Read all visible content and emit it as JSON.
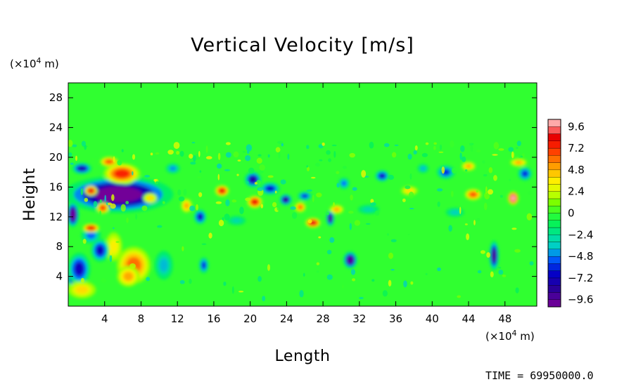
{
  "chart_data": {
    "type": "heatmap",
    "title": "Vertical Velocity [m/s]",
    "xlabel": "Length",
    "ylabel": "Height",
    "x_unit_prefix": "(×10",
    "x_unit_exp": "4",
    "x_unit_suffix": " m)",
    "y_unit_prefix": "(×10",
    "y_unit_exp": "4",
    "y_unit_suffix": " m)",
    "xlim": [
      0,
      51.5
    ],
    "ylim": [
      0,
      30
    ],
    "x_ticks": [
      4,
      8,
      12,
      16,
      20,
      24,
      28,
      32,
      36,
      40,
      44,
      48
    ],
    "x_tick_labels": [
      "4",
      "8",
      "12",
      "16",
      "20",
      "24",
      "28",
      "32",
      "36",
      "40",
      "44",
      "48"
    ],
    "y_ticks": [
      4,
      8,
      12,
      16,
      20,
      24,
      28
    ],
    "y_tick_labels": [
      "4",
      "8",
      "12",
      "16",
      "20",
      "24",
      "28"
    ],
    "colorbar": {
      "min": -10.4,
      "max": 10.4,
      "levels": [
        9.6,
        7.2,
        4.8,
        2.4,
        0,
        -2.4,
        -4.8,
        -7.2,
        -9.6
      ],
      "level_labels": [
        "9.6",
        "7.2",
        "4.8",
        "2.4",
        "0",
        "−2.4",
        "−4.8",
        "−7.2",
        "−9.6"
      ],
      "stops": [
        [
          -10.4,
          "#7a0098"
        ],
        [
          -8.4,
          "#2a009a"
        ],
        [
          -6.6,
          "#0000cc"
        ],
        [
          -5.0,
          "#0066ff"
        ],
        [
          -3.8,
          "#00cccc"
        ],
        [
          -2.6,
          "#00e0a0"
        ],
        [
          -1.4,
          "#00f060"
        ],
        [
          0.0,
          "#30ff30"
        ],
        [
          1.2,
          "#7cff00"
        ],
        [
          2.4,
          "#d6ff00"
        ],
        [
          3.6,
          "#ffee00"
        ],
        [
          4.8,
          "#ffb400"
        ],
        [
          6.0,
          "#ff7000"
        ],
        [
          7.2,
          "#ff2a00"
        ],
        [
          8.4,
          "#e80000"
        ],
        [
          9.4,
          "#ff7070"
        ],
        [
          10.4,
          "#ffd0d0"
        ]
      ]
    },
    "blobs": [
      {
        "x": 5.5,
        "y": 15.0,
        "w": 7.8,
        "h": 3.2,
        "value": -10.2
      },
      {
        "x": 6.3,
        "y": 17.2,
        "w": 1.4,
        "h": 1.1,
        "value": 10.2
      },
      {
        "x": 5.9,
        "y": 17.8,
        "w": 2.6,
        "h": 1.8,
        "value": 7.5
      },
      {
        "x": 7.2,
        "y": 5.5,
        "w": 2.4,
        "h": 3.2,
        "value": 6.0
      },
      {
        "x": 6.6,
        "y": 4.0,
        "w": 1.6,
        "h": 1.8,
        "value": 5.0
      },
      {
        "x": 5.0,
        "y": 8.0,
        "w": 1.2,
        "h": 2.5,
        "value": 3.5
      },
      {
        "x": 0.6,
        "y": 4.0,
        "w": 1.0,
        "h": 1.8,
        "value": -10.0
      },
      {
        "x": 1.2,
        "y": 5.0,
        "w": 1.6,
        "h": 2.8,
        "value": -7.0
      },
      {
        "x": 3.5,
        "y": 7.5,
        "w": 1.3,
        "h": 2.0,
        "value": -7.0
      },
      {
        "x": 2.5,
        "y": 9.5,
        "w": 1.4,
        "h": 1.4,
        "value": -5.0
      },
      {
        "x": 0.5,
        "y": 12.3,
        "w": 0.9,
        "h": 2.2,
        "value": -10.0
      },
      {
        "x": 1.5,
        "y": 18.5,
        "w": 1.4,
        "h": 1.0,
        "value": -7.5
      },
      {
        "x": 2.5,
        "y": 15.5,
        "w": 0.9,
        "h": 0.9,
        "value": 8.5
      },
      {
        "x": 3.8,
        "y": 13.2,
        "w": 0.9,
        "h": 1.0,
        "value": 7.0
      },
      {
        "x": 4.5,
        "y": 19.4,
        "w": 1.3,
        "h": 0.9,
        "value": 6.5
      },
      {
        "x": 1.5,
        "y": 2.2,
        "w": 2.0,
        "h": 1.5,
        "value": 4.0
      },
      {
        "x": 2.5,
        "y": 10.5,
        "w": 1.2,
        "h": 0.8,
        "value": 8.0
      },
      {
        "x": 10.5,
        "y": 5.5,
        "w": 1.3,
        "h": 2.5,
        "value": -4.0
      },
      {
        "x": 13.0,
        "y": 13.5,
        "w": 0.8,
        "h": 1.2,
        "value": 5.0
      },
      {
        "x": 14.5,
        "y": 12.0,
        "w": 0.9,
        "h": 1.3,
        "value": -7.0
      },
      {
        "x": 16.9,
        "y": 15.5,
        "w": 1.0,
        "h": 1.0,
        "value": 8.0
      },
      {
        "x": 14.9,
        "y": 5.5,
        "w": 0.7,
        "h": 1.4,
        "value": -6.0
      },
      {
        "x": 20.3,
        "y": 17.0,
        "w": 1.2,
        "h": 1.4,
        "value": -8.0
      },
      {
        "x": 22.2,
        "y": 15.8,
        "w": 1.4,
        "h": 1.1,
        "value": -6.5
      },
      {
        "x": 20.5,
        "y": 14.0,
        "w": 1.1,
        "h": 1.1,
        "value": 8.0
      },
      {
        "x": 23.9,
        "y": 14.3,
        "w": 0.9,
        "h": 1.0,
        "value": -8.5
      },
      {
        "x": 26.0,
        "y": 14.8,
        "w": 1.0,
        "h": 0.8,
        "value": -6.0
      },
      {
        "x": 25.5,
        "y": 13.3,
        "w": 0.8,
        "h": 0.9,
        "value": 6.0
      },
      {
        "x": 26.9,
        "y": 11.2,
        "w": 1.1,
        "h": 0.9,
        "value": 8.5
      },
      {
        "x": 28.8,
        "y": 11.8,
        "w": 0.6,
        "h": 1.4,
        "value": -9.0
      },
      {
        "x": 29.5,
        "y": 13.0,
        "w": 1.0,
        "h": 0.8,
        "value": 5.0
      },
      {
        "x": 31.0,
        "y": 6.2,
        "w": 1.0,
        "h": 1.5,
        "value": -9.5
      },
      {
        "x": 30.3,
        "y": 16.5,
        "w": 0.8,
        "h": 1.0,
        "value": -5.0
      },
      {
        "x": 34.5,
        "y": 17.5,
        "w": 1.0,
        "h": 1.0,
        "value": -7.0
      },
      {
        "x": 37.5,
        "y": 15.5,
        "w": 1.2,
        "h": 0.8,
        "value": 4.0
      },
      {
        "x": 39.0,
        "y": 18.5,
        "w": 0.8,
        "h": 0.8,
        "value": -4.0
      },
      {
        "x": 41.5,
        "y": 18.0,
        "w": 1.3,
        "h": 1.2,
        "value": -6.0
      },
      {
        "x": 44.5,
        "y": 15.0,
        "w": 1.2,
        "h": 1.0,
        "value": 6.5
      },
      {
        "x": 44.0,
        "y": 18.8,
        "w": 1.0,
        "h": 0.8,
        "value": 5.0
      },
      {
        "x": 46.8,
        "y": 6.8,
        "w": 0.7,
        "h": 2.6,
        "value": -9.0
      },
      {
        "x": 48.9,
        "y": 14.5,
        "w": 0.8,
        "h": 1.2,
        "value": 10.0
      },
      {
        "x": 50.2,
        "y": 17.8,
        "w": 1.0,
        "h": 1.2,
        "value": -6.0
      },
      {
        "x": 42.5,
        "y": 12.6,
        "w": 1.3,
        "h": 0.8,
        "value": -3.5
      },
      {
        "x": 49.5,
        "y": 19.3,
        "w": 1.2,
        "h": 0.7,
        "value": 5.0
      },
      {
        "x": 33.0,
        "y": 13.0,
        "w": 1.5,
        "h": 0.8,
        "value": -3.0
      },
      {
        "x": 18.5,
        "y": 11.5,
        "w": 1.3,
        "h": 0.8,
        "value": -3.0
      },
      {
        "x": 11.5,
        "y": 18.5,
        "w": 1.0,
        "h": 0.9,
        "value": -4.5
      },
      {
        "x": 9.0,
        "y": 14.5,
        "w": 1.0,
        "h": 0.9,
        "value": 4.0
      }
    ]
  },
  "footer": {
    "timestamp": "TIME  =  69950000.0"
  }
}
